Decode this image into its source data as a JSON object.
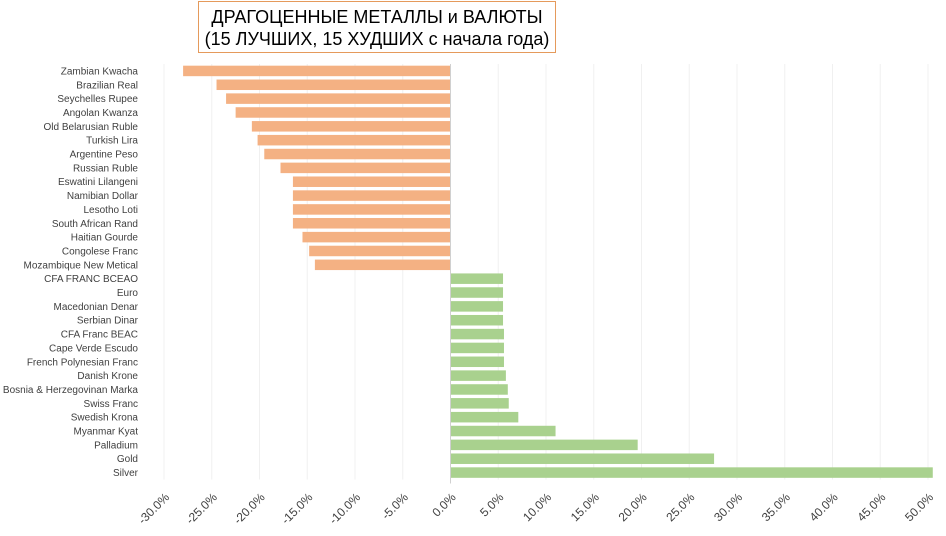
{
  "title_line1": "ДРАГОЦЕННЫЕ МЕТАЛЛЫ и ВАЛЮТЫ",
  "title_line2": "(15 ЛУЧШИХ, 15 ХУДШИХ с начала года)",
  "chart_data": {
    "type": "bar",
    "orientation": "horizontal",
    "categories": [
      "Zambian Kwacha",
      "Brazilian Real",
      "Seychelles Rupee",
      "Angolan Kwanza",
      "Old Belarusian Ruble",
      "Turkish Lira",
      "Argentine Peso",
      "Russian Ruble",
      "Eswatini Lilangeni",
      "Namibian Dollar",
      "Lesotho Loti",
      "South African Rand",
      "Haitian Gourde",
      "Congolese Franc",
      "Mozambique New Metical",
      "CFA FRANC BCEAO",
      "Euro",
      "Macedonian Denar",
      "Serbian Dinar",
      "CFA Franc BEAC",
      "Cape Verde Escudo",
      "French Polynesian Franc",
      "Danish Krone",
      "Bosnia & Herzegovinan Marka",
      "Swiss Franc",
      "Swedish Krona",
      "Myanmar Kyat",
      "Palladium",
      "Gold",
      "Silver"
    ],
    "values": [
      -28.0,
      -24.5,
      -23.5,
      -22.5,
      -20.8,
      -20.2,
      -19.5,
      -17.8,
      -16.5,
      -16.5,
      -16.5,
      -16.5,
      -15.5,
      -14.8,
      -14.2,
      5.5,
      5.5,
      5.5,
      5.5,
      5.6,
      5.6,
      5.6,
      5.8,
      6.0,
      6.1,
      7.1,
      11.0,
      19.6,
      27.6,
      50.5
    ],
    "colors": {
      "negative": "#f4b183",
      "positive": "#a9d18e"
    },
    "xlim": [
      -30,
      50
    ],
    "xticks": [
      "-30.0%",
      "-25.0%",
      "-20.0%",
      "-15.0%",
      "-10.0%",
      "-5.0%",
      "0.0%",
      "5.0%",
      "10.0%",
      "15.0%",
      "20.0%",
      "25.0%",
      "30.0%",
      "35.0%",
      "40.0%",
      "45.0%",
      "50.0%"
    ],
    "xtick_values": [
      -30,
      -25,
      -20,
      -15,
      -10,
      -5,
      0,
      5,
      10,
      15,
      20,
      25,
      30,
      35,
      40,
      45,
      50
    ],
    "grid": true,
    "legend": "none"
  }
}
